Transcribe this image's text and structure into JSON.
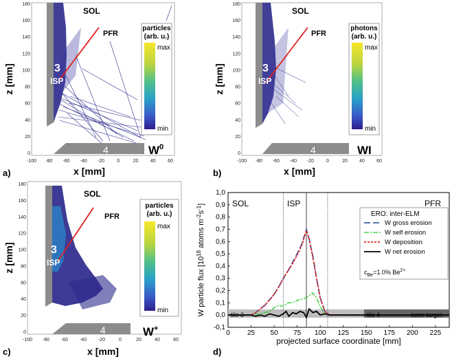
{
  "colors": {
    "tile": "#8c8c8c",
    "tileDark": "#555555",
    "plasma": "#2d2a8c",
    "plasmaHot": "#2a7fc4",
    "line": "#e0201e",
    "gross": "#3d5da6",
    "self": "#22cc22",
    "dep": "#e02020",
    "net": "#000000",
    "colormap": [
      "#f7e62a",
      "#b9d440",
      "#4fc08a",
      "#2aa0c8",
      "#3a56c8",
      "#2d1e8c"
    ]
  },
  "panels": {
    "a": {
      "label": "a)",
      "species": "W",
      "superscript": "0",
      "legend_title_1": "particles",
      "legend_title_2": "(arb. u.)",
      "cbar_max": "max",
      "cbar_min": "min"
    },
    "b": {
      "label": "b)",
      "species": "WI",
      "legend_title_1": "photons",
      "legend_title_2": "(arb. u.)",
      "cbar_max": "max",
      "cbar_min": "min"
    },
    "c": {
      "label": "c)",
      "species": "W",
      "superscript": "+",
      "legend_title_1": "particles",
      "legend_title_2": "(arb. u.)",
      "cbar_max": "max",
      "cbar_min": "min"
    },
    "d": {
      "label": "d)"
    }
  },
  "map_common": {
    "sol": "SOL",
    "pfr": "PFR",
    "tile3_num": "3",
    "isp": "ISP",
    "tile4_num": "4",
    "xlabel": "x [mm]",
    "ylabel": "z [mm]",
    "xticks": [
      "-100",
      "-80",
      "-60",
      "-40",
      "-20",
      "0",
      "20",
      "40",
      "60"
    ],
    "yticks": [
      "0",
      "20",
      "40",
      "60",
      "80",
      "100",
      "120",
      "140",
      "160",
      "180"
    ]
  },
  "chart_data": [
    {
      "type": "line",
      "title": "",
      "xlabel": "projected surface coordinate [mm]",
      "ylabel": "W particle flux [10^18 atoms m^-2 s^-1]",
      "ylabel_parts": {
        "main": "W particle flux [10",
        "exp1": "18",
        "mid": " atoms m",
        "exp2": "-2",
        "s": "s",
        "exp3": "-1",
        "end": "]"
      },
      "xlim": [
        0,
        240
      ],
      "ylim": [
        -0.1,
        1.0
      ],
      "xticks": [
        "0",
        "25",
        "50",
        "75",
        "100",
        "125",
        "150",
        "175",
        "200",
        "225"
      ],
      "yticks": [
        "-0,1",
        "0,0",
        "0,1",
        "0,2",
        "0,3",
        "0,4",
        "0,5",
        "0,6",
        "0,7",
        "0,8",
        "0,9",
        "1,0"
      ],
      "region_labels": {
        "sol": "SOL",
        "isp": "ISP",
        "pfr": "PFR"
      },
      "tile_labels": {
        "tile3": "tile 3",
        "tile4": "tile 4",
        "inner": "inner target"
      },
      "legend_title": "ERO: inter-ELM",
      "legend_position": "top-right",
      "annotation": {
        "prefix": "c",
        "sub": "Be",
        "value": "=1.0% Be",
        "sup": "2+"
      },
      "series": [
        {
          "name": "W gross erosion",
          "style": "dashed",
          "x": [
            0,
            25,
            30,
            40,
            50,
            55,
            60,
            65,
            70,
            75,
            80,
            85,
            88,
            92,
            96,
            100,
            105,
            110,
            150,
            240
          ],
          "y": [
            0,
            0,
            0.02,
            0.08,
            0.17,
            0.23,
            0.3,
            0.36,
            0.43,
            0.5,
            0.58,
            0.7,
            0.62,
            0.48,
            0.3,
            0.14,
            0.03,
            0,
            0,
            0
          ]
        },
        {
          "name": "W self erosion",
          "style": "dashdot",
          "x": [
            0,
            25,
            35,
            45,
            50,
            55,
            60,
            65,
            70,
            75,
            80,
            85,
            88,
            92,
            96,
            100,
            105,
            110,
            150,
            240
          ],
          "y": [
            0,
            0,
            0.01,
            0.03,
            0.06,
            0.08,
            0.07,
            0.1,
            0.1,
            0.12,
            0.13,
            0.14,
            0.16,
            0.18,
            0.14,
            0.07,
            0.01,
            0,
            0,
            0
          ]
        },
        {
          "name": "W deposition",
          "style": "dotted",
          "x": [
            0,
            25,
            30,
            40,
            50,
            55,
            60,
            65,
            70,
            75,
            80,
            85,
            88,
            92,
            96,
            100,
            105,
            110,
            150,
            240
          ],
          "y": [
            0,
            0,
            0.02,
            0.08,
            0.17,
            0.23,
            0.3,
            0.36,
            0.42,
            0.49,
            0.57,
            0.69,
            0.62,
            0.47,
            0.3,
            0.14,
            0.03,
            0,
            0,
            0
          ]
        },
        {
          "name": "W net erosion",
          "style": "solid",
          "x": [
            0,
            25,
            30,
            35,
            40,
            45,
            50,
            55,
            60,
            63,
            66,
            70,
            74,
            78,
            82,
            85,
            88,
            92,
            96,
            100,
            105,
            110,
            150,
            240
          ],
          "y": [
            0,
            0,
            -0.01,
            0,
            -0.01,
            0.01,
            0,
            -0.01,
            0.01,
            0.03,
            -0.01,
            0.02,
            0.01,
            0.03,
            0.02,
            -0.02,
            0.05,
            0.02,
            0.03,
            0,
            0.01,
            0,
            0,
            0
          ]
        }
      ]
    }
  ]
}
